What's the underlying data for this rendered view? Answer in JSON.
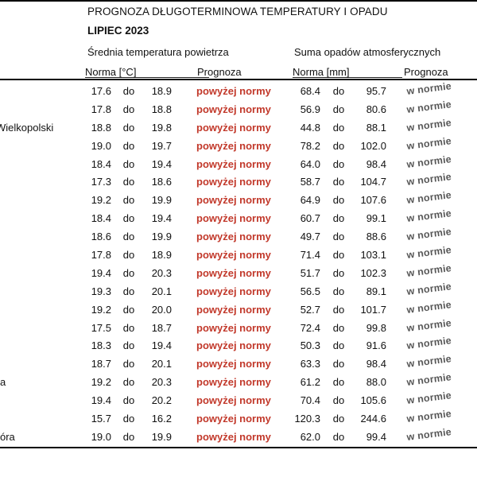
{
  "page": {
    "title": "PROGNOZA DŁUGOTERMINOWA TEMPERATURY I OPADU",
    "subtitle": "LIPIEC 2023"
  },
  "table": {
    "group_headers": {
      "temperature": "Średnia temperatura powietrza",
      "precipitation": "Suma opadów atmosferycznych"
    },
    "column_headers": {
      "temp_norm": "Norma [°C]",
      "temp_forecast": "Prognoza",
      "precip_norm": "Norma [mm]",
      "precip_forecast": "Prognoza"
    },
    "range_separator": "do",
    "rows": [
      {
        "city": "",
        "temp_from": "17.6",
        "temp_to": "18.9",
        "temp_forecast": "powyżej normy",
        "precip_from": "68.4",
        "precip_to": "95.7",
        "precip_forecast": "w normie"
      },
      {
        "city": "",
        "temp_from": "17.8",
        "temp_to": "18.8",
        "temp_forecast": "powyżej normy",
        "precip_from": "56.9",
        "precip_to": "80.6",
        "precip_forecast": "w normie"
      },
      {
        "city": "Wielkopolski",
        "temp_from": "18.8",
        "temp_to": "19.8",
        "temp_forecast": "powyżej normy",
        "precip_from": "44.8",
        "precip_to": "88.1",
        "precip_forecast": "w normie"
      },
      {
        "city": "",
        "temp_from": "19.0",
        "temp_to": "19.7",
        "temp_forecast": "powyżej normy",
        "precip_from": "78.2",
        "precip_to": "102.0",
        "precip_forecast": "w normie"
      },
      {
        "city": "",
        "temp_from": "18.4",
        "temp_to": "19.4",
        "temp_forecast": "powyżej normy",
        "precip_from": "64.0",
        "precip_to": "98.4",
        "precip_forecast": "w normie"
      },
      {
        "city": "",
        "temp_from": "17.3",
        "temp_to": "18.6",
        "temp_forecast": "powyżej normy",
        "precip_from": "58.7",
        "precip_to": "104.7",
        "precip_forecast": "w normie"
      },
      {
        "city": "",
        "temp_from": "19.2",
        "temp_to": "19.9",
        "temp_forecast": "powyżej normy",
        "precip_from": "64.9",
        "precip_to": "107.6",
        "precip_forecast": "w normie"
      },
      {
        "city": "",
        "temp_from": "18.4",
        "temp_to": "19.4",
        "temp_forecast": "powyżej normy",
        "precip_from": "60.7",
        "precip_to": "99.1",
        "precip_forecast": "w normie"
      },
      {
        "city": "",
        "temp_from": "18.6",
        "temp_to": "19.9",
        "temp_forecast": "powyżej normy",
        "precip_from": "49.7",
        "precip_to": "88.6",
        "precip_forecast": "w normie"
      },
      {
        "city": "",
        "temp_from": "17.8",
        "temp_to": "18.9",
        "temp_forecast": "powyżej normy",
        "precip_from": "71.4",
        "precip_to": "103.1",
        "precip_forecast": "w normie"
      },
      {
        "city": "",
        "temp_from": "19.4",
        "temp_to": "20.3",
        "temp_forecast": "powyżej normy",
        "precip_from": "51.7",
        "precip_to": "102.3",
        "precip_forecast": "w normie"
      },
      {
        "city": "",
        "temp_from": "19.3",
        "temp_to": "20.1",
        "temp_forecast": "powyżej normy",
        "precip_from": "56.5",
        "precip_to": "89.1",
        "precip_forecast": "w normie"
      },
      {
        "city": "",
        "temp_from": "19.2",
        "temp_to": "20.0",
        "temp_forecast": "powyżej normy",
        "precip_from": "52.7",
        "precip_to": "101.7",
        "precip_forecast": "w normie"
      },
      {
        "city": "",
        "temp_from": "17.5",
        "temp_to": "18.7",
        "temp_forecast": "powyżej normy",
        "precip_from": "72.4",
        "precip_to": "99.8",
        "precip_forecast": "w normie"
      },
      {
        "city": "",
        "temp_from": "18.3",
        "temp_to": "19.4",
        "temp_forecast": "powyżej normy",
        "precip_from": "50.3",
        "precip_to": "91.6",
        "precip_forecast": "w normie"
      },
      {
        "city": "",
        "temp_from": "18.7",
        "temp_to": "20.1",
        "temp_forecast": "powyżej normy",
        "precip_from": "63.3",
        "precip_to": "98.4",
        "precip_forecast": "w normie"
      },
      {
        "city": "a",
        "temp_from": "19.2",
        "temp_to": "20.3",
        "temp_forecast": "powyżej normy",
        "precip_from": "61.2",
        "precip_to": "88.0",
        "precip_forecast": "w normie"
      },
      {
        "city": "",
        "temp_from": "19.4",
        "temp_to": "20.2",
        "temp_forecast": "powyżej normy",
        "precip_from": "70.4",
        "precip_to": "105.6",
        "precip_forecast": "w normie"
      },
      {
        "city": "",
        "temp_from": "15.7",
        "temp_to": "16.2",
        "temp_forecast": "powyżej normy",
        "precip_from": "120.3",
        "precip_to": "244.6",
        "precip_forecast": "w normie"
      },
      {
        "city": "óra",
        "temp_from": "19.0",
        "temp_to": "19.9",
        "temp_forecast": "powyżej normy",
        "precip_from": "62.0",
        "precip_to": "99.4",
        "precip_forecast": "w normie"
      }
    ]
  },
  "colors": {
    "above_norm_red": "#c2392b",
    "in_norm_gray": "#575757",
    "text": "#111111",
    "rule": "#000000"
  }
}
